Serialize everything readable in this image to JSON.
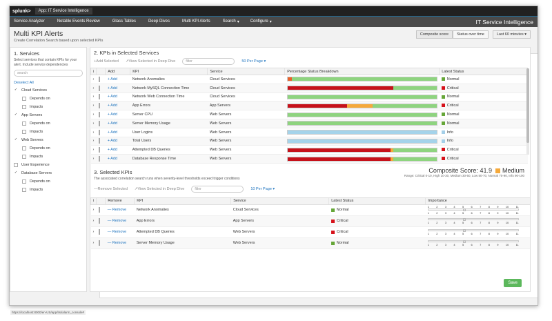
{
  "topbar": {
    "logo": "splunk>",
    "app": "App: IT Service Intelligence",
    "menus": [
      "Administrator",
      "Messages",
      "Settings",
      "Activity",
      "Help"
    ],
    "find_placeholder": "Find"
  },
  "navbar": {
    "items": [
      "Service Analyzer",
      "Notable Events Review",
      "Glass Tables",
      "Deep Dives",
      "Multi KPI Alerts",
      "Search",
      "Configure"
    ],
    "brand": "IT Service Intelligence"
  },
  "header": {
    "title": "Multi KPI Alerts",
    "subtitle": "Create Correlation Search based upon selected KPIs",
    "composite_btn": "Composite score",
    "status_btn": "Status over time",
    "time_btn": "Last 60 minutes"
  },
  "services_panel": {
    "title": "1. Services",
    "desc": "Select services that contain KPIs for your alert. Include service dependencies",
    "search_placeholder": "search",
    "deselect": "Deselect All",
    "services": [
      {
        "name": "Cloud Services",
        "checked": true,
        "subs": [
          "Depends on",
          "Impacts"
        ]
      },
      {
        "name": "App Servers",
        "checked": true,
        "subs": [
          "Depends on",
          "Impacts"
        ]
      },
      {
        "name": "Web Servers",
        "checked": true,
        "subs": [
          "Depends on",
          "Impacts"
        ]
      },
      {
        "name": "User Experience",
        "checked": false,
        "subs": []
      },
      {
        "name": "Database Servers",
        "checked": true,
        "subs": [
          "Depends on",
          "Impacts"
        ]
      }
    ]
  },
  "kpis": {
    "title": "2. KPIs in Selected Services",
    "add_selected": "+Add Selected",
    "view_deep": "↗View Selected in Deep Dive",
    "filter_placeholder": "filter",
    "per_page": "50 Per Page",
    "headers": [
      "i",
      "",
      "Add",
      "KPI",
      "Service",
      "Percentage Status Breakdown",
      "Latest Status"
    ],
    "add_label": "+ Add",
    "rows": [
      {
        "kpi": "Network Anomalies",
        "service": "Cloud Services",
        "status": "Normal",
        "color": "#65a637",
        "bars": [
          {
            "c": "#e8622c",
            "w": 3
          },
          {
            "c": "#8ed47f",
            "w": 97
          }
        ]
      },
      {
        "kpi": "Network MySQL Connection Time",
        "service": "Cloud Services",
        "status": "Critical",
        "color": "#d6111a",
        "bars": [
          {
            "c": "#c6111a",
            "w": 71
          },
          {
            "c": "#8ed47f",
            "w": 29
          }
        ]
      },
      {
        "kpi": "Network Web Connection Time",
        "service": "Cloud Services",
        "status": "Normal",
        "color": "#65a637",
        "bars": [
          {
            "c": "#8ed47f",
            "w": 100
          }
        ]
      },
      {
        "kpi": "App Errors",
        "service": "App Servers",
        "status": "Critical",
        "color": "#d6111a",
        "bars": [
          {
            "c": "#c6111a",
            "w": 40
          },
          {
            "c": "#f5a93b",
            "w": 17
          },
          {
            "c": "#8ed47f",
            "w": 43
          }
        ]
      },
      {
        "kpi": "Server CPU",
        "service": "Web Servers",
        "status": "Normal",
        "color": "#65a637",
        "bars": [
          {
            "c": "#8ed47f",
            "w": 100
          }
        ]
      },
      {
        "kpi": "Server Memory Usage",
        "service": "Web Servers",
        "status": "Normal",
        "color": "#65a637",
        "bars": [
          {
            "c": "#8ed47f",
            "w": 100
          }
        ]
      },
      {
        "kpi": "User Logins",
        "service": "Web Servers",
        "status": "Info",
        "color": "#a4cfe8",
        "bars": [
          {
            "c": "#a4d3ea",
            "w": 100
          }
        ]
      },
      {
        "kpi": "Total Users",
        "service": "Web Servers",
        "status": "Info",
        "color": "#a4cfe8",
        "bars": [
          {
            "c": "#a4d3ea",
            "w": 100
          }
        ]
      },
      {
        "kpi": "Attempted DB Queries",
        "service": "Web Servers",
        "status": "Critical",
        "color": "#d6111a",
        "bars": [
          {
            "c": "#c6111a",
            "w": 69
          },
          {
            "c": "#f5a93b",
            "w": 2
          },
          {
            "c": "#8ed47f",
            "w": 29
          }
        ]
      },
      {
        "kpi": "Database Response Time",
        "service": "Web Servers",
        "status": "Critical",
        "color": "#d6111a",
        "bars": [
          {
            "c": "#c6111a",
            "w": 69
          },
          {
            "c": "#f5a93b",
            "w": 2
          },
          {
            "c": "#8ed47f",
            "w": 29
          }
        ]
      }
    ]
  },
  "selected": {
    "title": "3. Selected KPIs",
    "desc": "The associated correlation search runs when severity-level thresholds exceed trigger conditions",
    "composite_label": "Composite Score:",
    "composite_value": "41.9",
    "composite_level": "Medium",
    "range": "Range: Critical 0-10, High 10-30, Medium 30-50, Low 50-70, Normal 70-90, Info 90-100",
    "remove_selected": "—Remove Selected",
    "view_deep": "↗View Selected in Deep Dive",
    "filter_placeholder": "filter",
    "per_page": "10 Per Page",
    "headers": [
      "i",
      "",
      "Remove",
      "KPI",
      "Service",
      "Latest Status",
      "Importance"
    ],
    "remove_label": "— Remove",
    "importance_scale": [
      "1",
      "2",
      "3",
      "4",
      "5",
      "6",
      "7",
      "8",
      "9",
      "10",
      "11"
    ],
    "rows": [
      {
        "kpi": "Network Anomalies",
        "service": "Cloud Services",
        "status": "Normal",
        "color": "#65a637"
      },
      {
        "kpi": "App Errors",
        "service": "App Servers",
        "status": "Critical",
        "color": "#d6111a"
      },
      {
        "kpi": "Attempted DB Queries",
        "service": "Web Servers",
        "status": "Critical",
        "color": "#d6111a"
      },
      {
        "kpi": "Server Memory Usage",
        "service": "Web Servers",
        "status": "Normal",
        "color": "#65a637"
      }
    ]
  },
  "save_label": "Save",
  "status_url": "https://localhost:8000/en-US/app/itsi/alarm_console#"
}
